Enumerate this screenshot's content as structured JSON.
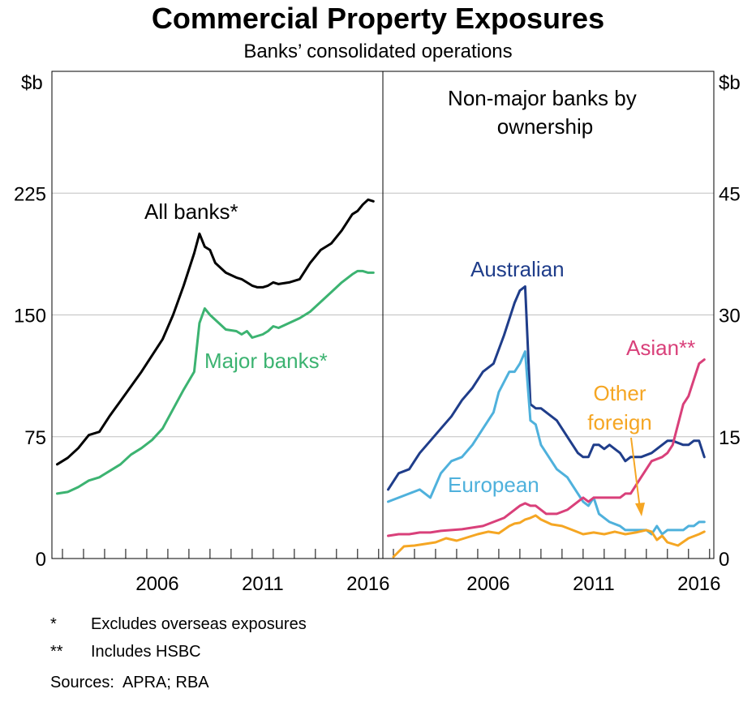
{
  "title": "Commercial Property Exposures",
  "subtitle": "Banks’ consolidated operations",
  "footnotes": [
    {
      "mark": "*",
      "text": "Excludes overseas exposures"
    },
    {
      "mark": "**",
      "text": "Includes HSBC"
    }
  ],
  "sources": {
    "label": "Sources:",
    "text": "APRA; RBA"
  },
  "colors": {
    "all_banks": "#000000",
    "major_banks": "#3cb371",
    "australian": "#1f3d8a",
    "european": "#4fb1dc",
    "asian": "#d9407a",
    "other_foreign": "#f5a623",
    "grid": "#c0c0c0"
  },
  "chart_data": [
    {
      "type": "line",
      "panel": "left",
      "title": "",
      "ylabel": "$b",
      "ylim": [
        0,
        300
      ],
      "yticks": [
        0,
        75,
        150,
        225
      ],
      "xlim": [
        2001.5,
        2017.2
      ],
      "xticks": [
        2006,
        2011,
        2016
      ],
      "grid": true,
      "series": [
        {
          "name": "All banks*",
          "color_key": "all_banks",
          "x": [
            2001.75,
            2002.25,
            2002.75,
            2003.25,
            2003.75,
            2004.25,
            2004.75,
            2005.25,
            2005.75,
            2006.25,
            2006.75,
            2007.25,
            2007.75,
            2008.25,
            2008.5,
            2008.75,
            2009.0,
            2009.25,
            2009.75,
            2010.25,
            2010.5,
            2010.75,
            2011.0,
            2011.25,
            2011.5,
            2011.75,
            2012.0,
            2012.25,
            2012.75,
            2013.25,
            2013.75,
            2014.25,
            2014.75,
            2015.25,
            2015.75,
            2016.0,
            2016.25,
            2016.5,
            2016.75
          ],
          "values": [
            58,
            62,
            68,
            76,
            78,
            88,
            97,
            106,
            115,
            125,
            135,
            150,
            168,
            188,
            200,
            192,
            190,
            182,
            176,
            173,
            172,
            170,
            168,
            167,
            167,
            168,
            170,
            169,
            170,
            172,
            182,
            190,
            194,
            202,
            212,
            214,
            218,
            221,
            220
          ]
        },
        {
          "name": "Major banks*",
          "color_key": "major_banks",
          "x": [
            2001.75,
            2002.25,
            2002.75,
            2003.25,
            2003.75,
            2004.25,
            2004.75,
            2005.25,
            2005.75,
            2006.25,
            2006.75,
            2007.25,
            2007.75,
            2008.25,
            2008.5,
            2008.75,
            2009.0,
            2009.25,
            2009.75,
            2010.25,
            2010.5,
            2010.75,
            2011.0,
            2011.25,
            2011.5,
            2011.75,
            2012.0,
            2012.25,
            2012.75,
            2013.25,
            2013.75,
            2014.25,
            2014.75,
            2015.25,
            2015.75,
            2016.0,
            2016.25,
            2016.5,
            2016.75
          ],
          "values": [
            40,
            41,
            44,
            48,
            50,
            54,
            58,
            64,
            68,
            73,
            80,
            92,
            104,
            115,
            145,
            154,
            150,
            147,
            141,
            140,
            138,
            140,
            136,
            137,
            138,
            140,
            143,
            142,
            145,
            148,
            152,
            158,
            164,
            170,
            175,
            177,
            177,
            176,
            176
          ]
        }
      ],
      "annotations": [
        {
          "text": "All banks*",
          "series": "All banks*"
        },
        {
          "text": "Major banks*",
          "series": "Major banks*"
        }
      ]
    },
    {
      "type": "line",
      "panel": "right",
      "title": "Non-major banks by ownership",
      "ylabel": "$b",
      "ylim": [
        0,
        60
      ],
      "yticks": [
        0,
        15,
        30,
        45
      ],
      "xlim": [
        2001.5,
        2017.2
      ],
      "xticks": [
        2006,
        2011,
        2016
      ],
      "grid": true,
      "series": [
        {
          "name": "Australian",
          "color_key": "australian",
          "x": [
            2001.75,
            2002.25,
            2002.75,
            2003.25,
            2003.75,
            2004.25,
            2004.75,
            2005.25,
            2005.75,
            2006.25,
            2006.75,
            2007.25,
            2007.75,
            2008.0,
            2008.25,
            2008.5,
            2008.75,
            2009.0,
            2009.25,
            2009.75,
            2010.25,
            2010.5,
            2010.75,
            2011.0,
            2011.25,
            2011.5,
            2011.75,
            2012.0,
            2012.25,
            2012.75,
            2013.0,
            2013.25,
            2013.75,
            2014.25,
            2014.75,
            2015.0,
            2015.25,
            2015.75,
            2016.0,
            2016.25,
            2016.5,
            2016.75
          ],
          "values": [
            8.5,
            10.5,
            11,
            13,
            14.5,
            16,
            17.5,
            19.5,
            21,
            23,
            24,
            27.5,
            31.5,
            33,
            33.5,
            19,
            18.5,
            18.5,
            18,
            17,
            15,
            14,
            13,
            12.5,
            12.5,
            14,
            14,
            13.5,
            14,
            13,
            12,
            12.5,
            12.5,
            13,
            14,
            14.5,
            14.5,
            14,
            14,
            14.5,
            14.5,
            12.5
          ]
        },
        {
          "name": "European",
          "color_key": "european",
          "x": [
            2001.75,
            2002.25,
            2002.75,
            2003.25,
            2003.75,
            2004.25,
            2004.75,
            2005.25,
            2005.75,
            2006.25,
            2006.75,
            2007.0,
            2007.5,
            2007.75,
            2008.0,
            2008.25,
            2008.5,
            2008.75,
            2009.0,
            2009.25,
            2009.75,
            2010.25,
            2010.5,
            2010.75,
            2011.0,
            2011.25,
            2011.5,
            2011.75,
            2012.0,
            2012.25,
            2012.75,
            2013.0,
            2013.25,
            2013.75,
            2014.0,
            2014.25,
            2014.5,
            2014.75,
            2015.0,
            2015.25,
            2015.75,
            2016.0,
            2016.25,
            2016.5,
            2016.75
          ],
          "values": [
            7,
            7.5,
            8,
            8.5,
            7.5,
            10.5,
            12,
            12.5,
            14,
            16,
            18,
            20.5,
            23,
            23,
            24,
            25.5,
            17,
            16.5,
            14,
            13,
            11,
            10,
            9,
            8,
            7,
            6.5,
            7.5,
            5.5,
            5,
            4.5,
            4,
            3.5,
            3.5,
            3.5,
            3.5,
            3,
            4,
            3,
            3.5,
            3.5,
            3.5,
            4,
            4,
            4.5,
            4.5
          ]
        },
        {
          "name": "Asian**",
          "color_key": "asian",
          "x": [
            2001.75,
            2002.25,
            2002.75,
            2003.25,
            2003.75,
            2004.25,
            2004.75,
            2005.25,
            2005.75,
            2006.25,
            2006.75,
            2007.25,
            2007.75,
            2008.0,
            2008.25,
            2008.5,
            2008.75,
            2009.0,
            2009.25,
            2009.75,
            2010.25,
            2010.5,
            2010.75,
            2011.0,
            2011.25,
            2011.5,
            2011.75,
            2012.0,
            2012.25,
            2012.75,
            2013.0,
            2013.25,
            2013.75,
            2014.0,
            2014.25,
            2014.75,
            2015.0,
            2015.25,
            2015.75,
            2016.0,
            2016.25,
            2016.5,
            2016.75
          ],
          "values": [
            2.8,
            3,
            3,
            3.2,
            3.2,
            3.4,
            3.5,
            3.6,
            3.8,
            4,
            4.5,
            5,
            6,
            6.5,
            6.8,
            6.5,
            6.5,
            6,
            5.5,
            5.5,
            6,
            6.5,
            7,
            7.5,
            7,
            7.5,
            7.5,
            7.5,
            7.5,
            7.5,
            8,
            8,
            10,
            11,
            12,
            12.5,
            13,
            14,
            19,
            20,
            22,
            24,
            24.5
          ]
        },
        {
          "name": "Other foreign",
          "color_key": "other_foreign",
          "x": [
            2002.0,
            2002.5,
            2003.0,
            2003.5,
            2004.0,
            2004.5,
            2005.0,
            2005.5,
            2006.0,
            2006.5,
            2007.0,
            2007.5,
            2007.75,
            2008.0,
            2008.25,
            2008.5,
            2008.75,
            2009.0,
            2009.5,
            2010.0,
            2010.5,
            2011.0,
            2011.5,
            2012.0,
            2012.5,
            2013.0,
            2013.5,
            2014.0,
            2014.25,
            2014.5,
            2014.75,
            2015.0,
            2015.5,
            2016.0,
            2016.5,
            2016.75
          ],
          "values": [
            0.2,
            1.5,
            1.6,
            1.8,
            2,
            2.5,
            2.2,
            2.6,
            3,
            3.3,
            3.1,
            4,
            4.3,
            4.4,
            4.8,
            5,
            5.3,
            4.8,
            4.2,
            4,
            3.5,
            3,
            3.2,
            3,
            3.3,
            3,
            3.2,
            3.5,
            3.3,
            2.3,
            2.8,
            2,
            1.6,
            2.5,
            3,
            3.3
          ]
        }
      ],
      "annotations": [
        {
          "text": "Australian",
          "series": "Australian"
        },
        {
          "text": "European",
          "series": "European"
        },
        {
          "text": "Asian**",
          "series": "Asian**"
        },
        {
          "text": "Other",
          "series": "Other foreign"
        },
        {
          "text": "foreign",
          "series": "Other foreign"
        }
      ]
    }
  ]
}
